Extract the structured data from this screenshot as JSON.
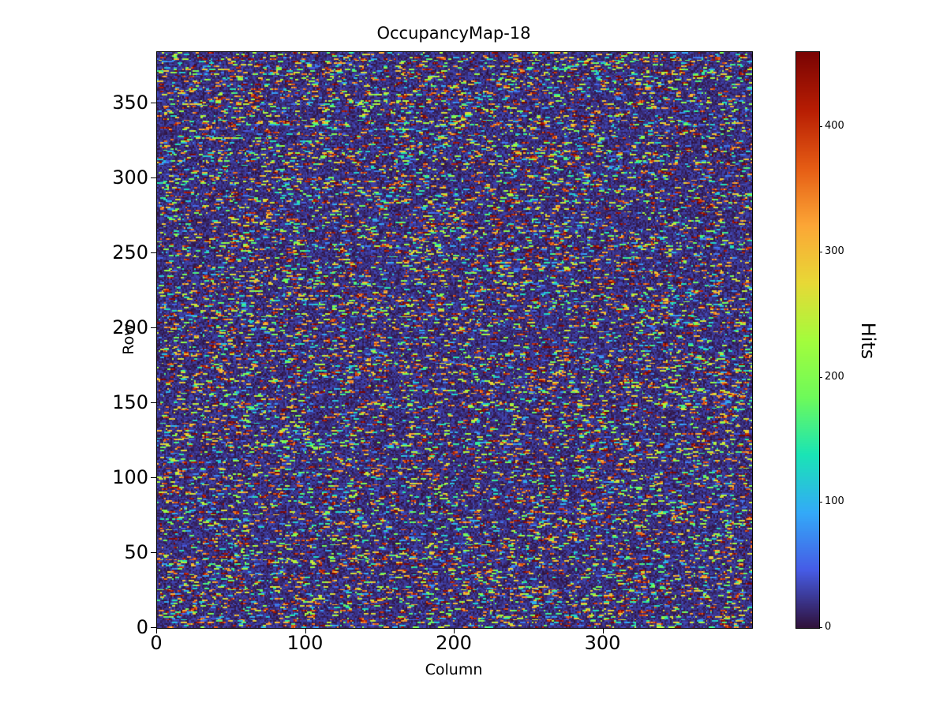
{
  "figure": {
    "background": "#ffffff"
  },
  "chart_data": {
    "type": "heatmap",
    "title": "OccupancyMap-18",
    "xlabel": "Column",
    "ylabel": "Row",
    "colorbar_label": "Hits",
    "x_range": [
      0,
      400
    ],
    "y_range": [
      0,
      384
    ],
    "x_ticks": [
      0,
      100,
      200,
      300
    ],
    "y_ticks": [
      0,
      50,
      100,
      150,
      200,
      250,
      300,
      350
    ],
    "colorbar_ticks": [
      0,
      100,
      200,
      300,
      400
    ],
    "vmin": 0,
    "vmax": 460,
    "colormap": "turbo",
    "grid": false,
    "legend_position": "colorbar-right",
    "colormap_stops": [
      [
        0.0,
        48,
        18,
        59
      ],
      [
        0.1,
        70,
        92,
        230
      ],
      [
        0.2,
        51,
        170,
        248
      ],
      [
        0.3,
        26,
        228,
        182
      ],
      [
        0.4,
        110,
        250,
        90
      ],
      [
        0.5,
        164,
        252,
        60
      ],
      [
        0.6,
        232,
        216,
        54
      ],
      [
        0.7,
        252,
        166,
        54
      ],
      [
        0.8,
        229,
        92,
        20
      ],
      [
        0.9,
        183,
        29,
        3
      ],
      [
        1.0,
        122,
        4,
        3
      ]
    ],
    "pattern": {
      "description": "Dense random pixel-occupancy speckle: dark low-count background (0-35 hits) with short horizontal dashes of higher hit counts (40-460 hits) scattered uniformly across all rows",
      "rows": 384,
      "cols": 400,
      "seed": 18,
      "background_max": 35,
      "dash_start_probability_min": 0.06,
      "dash_start_probability_spread": 0.09,
      "dash_length_max": 4,
      "dash_value_min": 40,
      "dash_value_max": 460
    }
  }
}
